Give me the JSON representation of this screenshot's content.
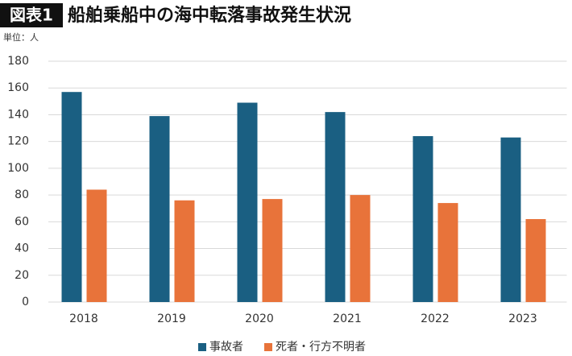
{
  "chart_data": {
    "type": "bar",
    "title_badge": "図表1",
    "title": "船舶乗船中の海中転落事故発生状況",
    "y_label": "単位：人",
    "categories": [
      "2018",
      "2019",
      "2020",
      "2021",
      "2022",
      "2023"
    ],
    "series": [
      {
        "name": "事故者",
        "color": "#1a5f82",
        "values": [
          157,
          139,
          149,
          142,
          124,
          123
        ]
      },
      {
        "name": "死者・行方不明者",
        "color": "#e8733a",
        "values": [
          84,
          76,
          77,
          80,
          74,
          62
        ]
      }
    ],
    "ylim": [
      0,
      180
    ],
    "yticks": [
      0,
      20,
      40,
      60,
      80,
      100,
      120,
      140,
      160,
      180
    ],
    "grid": true
  }
}
